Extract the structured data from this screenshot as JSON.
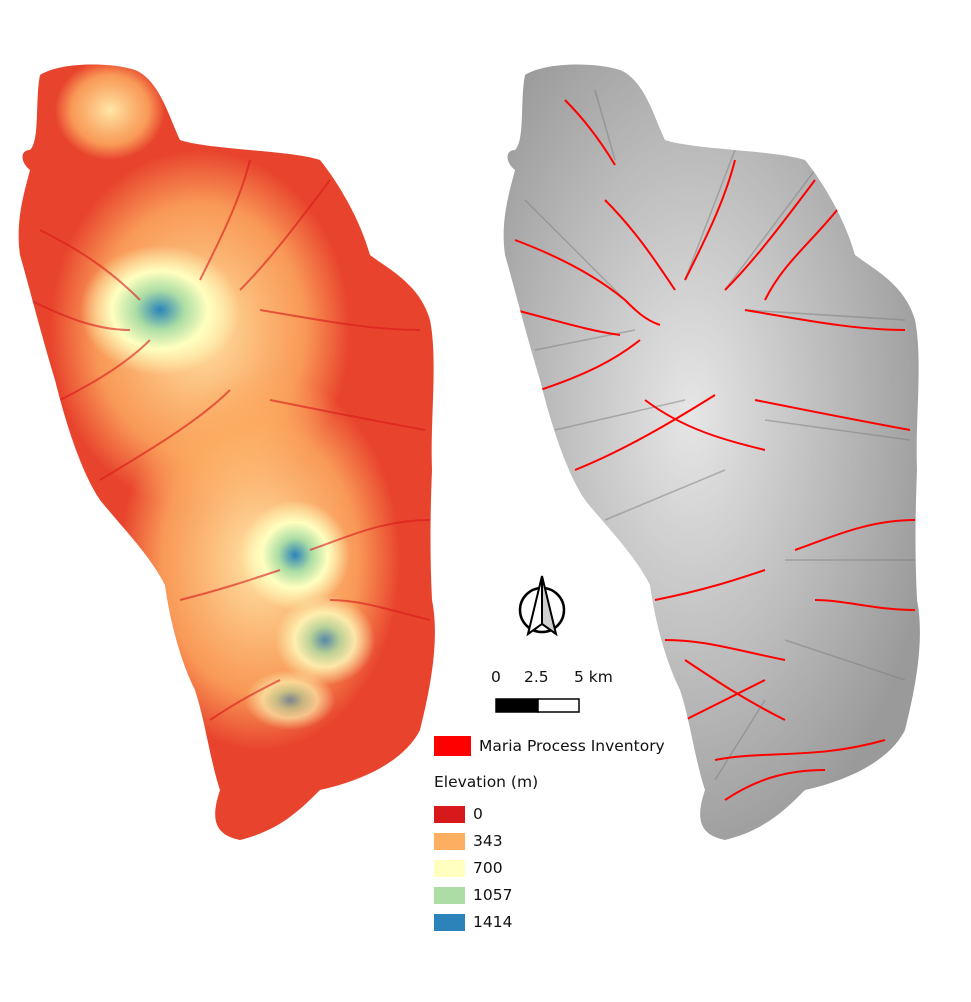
{
  "scale_bar": {
    "labels": [
      "0",
      "2.5",
      "5 km"
    ]
  },
  "north_arrow": {
    "icon": "north-arrow-icon"
  },
  "legend": {
    "inventory": {
      "label": "Maria Process Inventory",
      "color": "#ff0000"
    },
    "elevation": {
      "title": "Elevation (m)",
      "classes": [
        {
          "label": "0",
          "color": "#d7191c"
        },
        {
          "label": "343",
          "color": "#fdae61"
        },
        {
          "label": "700",
          "color": "#ffffbf"
        },
        {
          "label": "1057",
          "color": "#abdda4"
        },
        {
          "label": "1414",
          "color": "#2b83ba"
        }
      ]
    }
  },
  "maps": {
    "left": {
      "theme": "elevation",
      "colors": [
        "#d7191c",
        "#fdae61",
        "#ffffbf",
        "#abdda4",
        "#2b83ba"
      ]
    },
    "right": {
      "theme": "hillshade-with-inventory",
      "colors": [
        "#8c8c8c",
        "#cfcfcf",
        "#ff0000"
      ]
    }
  }
}
